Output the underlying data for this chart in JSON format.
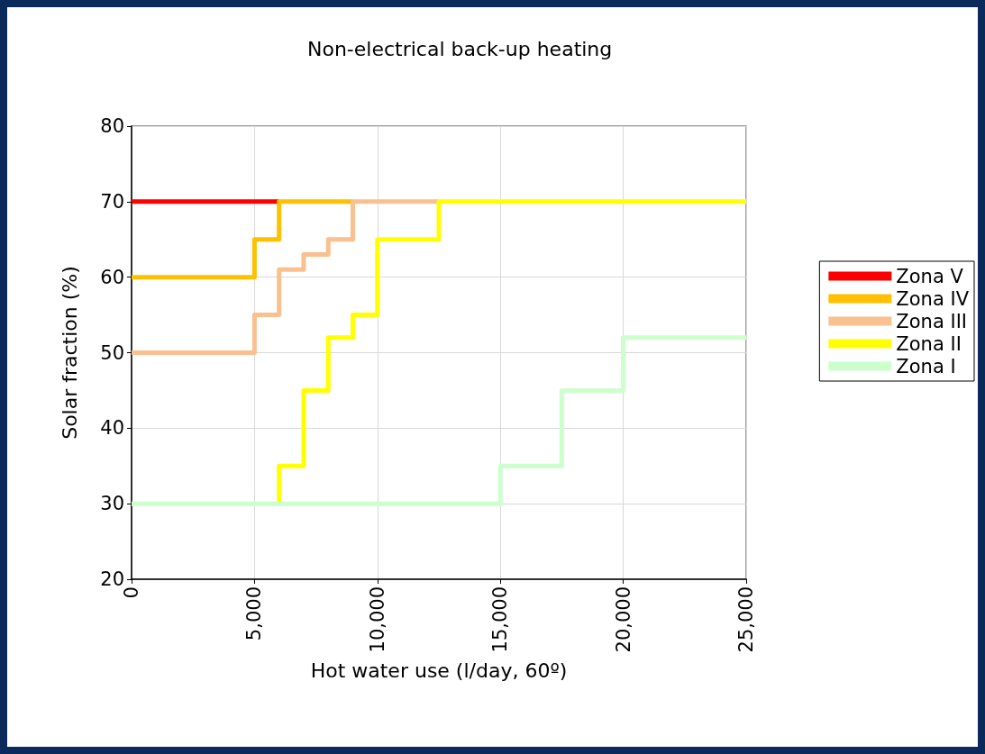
{
  "chart_data": {
    "type": "step",
    "title": "Non-electrical back-up heating",
    "xlabel": "Hot water use (l/day, 60º)",
    "ylabel": "Solar fraction (%)",
    "xlim": [
      0,
      25000
    ],
    "xticks": [
      0,
      {
        "value": 5000,
        "label": "5,000"
      },
      {
        "value": 10000,
        "label": "10,000"
      },
      {
        "value": 15000,
        "label": "15,000"
      },
      {
        "value": 20000,
        "label": "20,000"
      },
      {
        "value": 25000,
        "label": "25,000"
      }
    ],
    "ylim": [
      20,
      80
    ],
    "yticks": [
      20,
      30,
      40,
      50,
      60,
      70,
      80
    ],
    "grid": true,
    "legend": "right",
    "line_style": "solid",
    "marker": "none",
    "series": [
      {
        "name": "Zona V",
        "color": "#ff0000",
        "x": [
          0,
          6000
        ],
        "values": [
          70,
          70
        ]
      },
      {
        "name": "Zona IV",
        "color": "#ffc000",
        "x": [
          0,
          5000,
          6000,
          9000
        ],
        "values": [
          60,
          65,
          70,
          70
        ]
      },
      {
        "name": "Zona III",
        "color": "#fac090",
        "x": [
          0,
          5000,
          6000,
          7000,
          8000,
          9000,
          12500
        ],
        "values": [
          50,
          55,
          61,
          63,
          65,
          70,
          70
        ]
      },
      {
        "name": "Zona II",
        "color": "#ffff00",
        "x": [
          6000,
          6000,
          7000,
          8000,
          9000,
          10000,
          12500,
          25000
        ],
        "values": [
          30,
          35,
          45,
          52,
          55,
          65,
          70,
          70
        ]
      },
      {
        "name": "Zona I",
        "color": "#ccffcc",
        "x": [
          0,
          15000,
          17500,
          20000,
          25000
        ],
        "values": [
          30,
          35,
          45,
          52,
          52
        ]
      }
    ]
  }
}
